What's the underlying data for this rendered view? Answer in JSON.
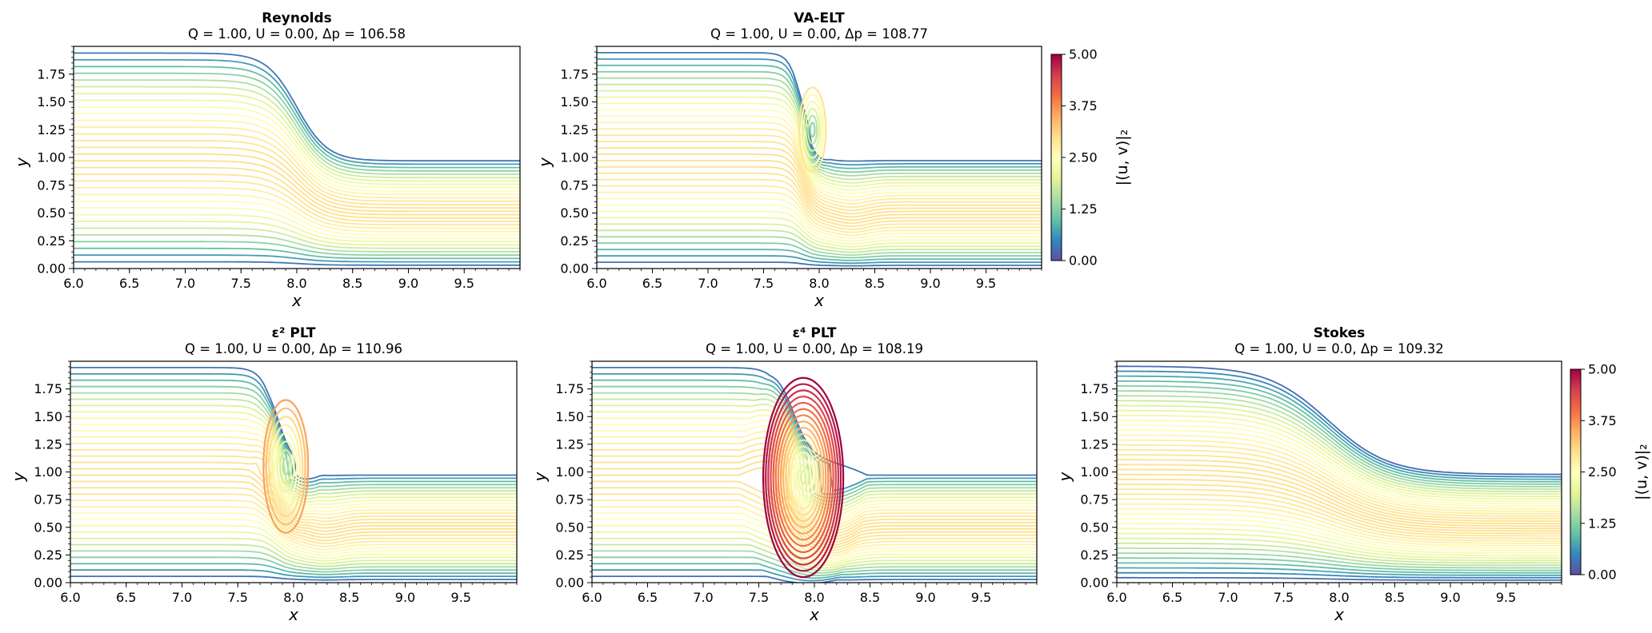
{
  "figure_description": "Streamline comparison of lubrication-theory models vs Stokes flow over a backward-facing step",
  "colors": {
    "colormap": [
      "#5e4fa2",
      "#3288bd",
      "#66c2a5",
      "#abdda4",
      "#e6f598",
      "#ffffbf",
      "#fee08b",
      "#fdae61",
      "#f46d43",
      "#d53e4f",
      "#9e0142"
    ]
  },
  "chart_data": [
    {
      "id": "reynolds",
      "type": "streamline",
      "title": "Reynolds",
      "subtitle": "Q = 1.00, U = 0.00, Δp = 106.58",
      "xlabel": "x",
      "ylabel": "y",
      "xlim": [
        6.0,
        10.0
      ],
      "ylim": [
        0.0,
        2.0
      ],
      "xticks": [
        "6.0",
        "6.5",
        "7.0",
        "7.5",
        "8.0",
        "8.5",
        "9.0",
        "9.5"
      ],
      "yticks": [
        "0.00",
        "0.25",
        "0.50",
        "0.75",
        "1.00",
        "1.25",
        "1.50",
        "1.75"
      ],
      "geometry": {
        "h_in": 2.0,
        "h_out": 1.0,
        "step_center_x": 8.0,
        "step_width": 0.6
      },
      "streamline_count": 32,
      "vortex": null,
      "colorbar": null
    },
    {
      "id": "va-elt",
      "type": "streamline",
      "title": "VA-ELT",
      "subtitle": "Q = 1.00, U = 0.00, Δp = 108.77",
      "xlabel": "x",
      "ylabel": "y",
      "xlim": [
        6.0,
        10.0
      ],
      "ylim": [
        0.0,
        2.0
      ],
      "xticks": [
        "6.0",
        "6.5",
        "7.0",
        "7.5",
        "8.0",
        "8.5",
        "9.0",
        "9.5"
      ],
      "yticks": [
        "0.00",
        "0.25",
        "0.50",
        "0.75",
        "1.00",
        "1.25",
        "1.50",
        "1.75"
      ],
      "geometry": {
        "h_in": 2.0,
        "h_out": 1.0,
        "step_center_x": 7.85,
        "step_width": 0.25
      },
      "streamline_count": 34,
      "vortex": {
        "cx": 7.94,
        "cy": 1.25,
        "rx": 0.12,
        "ry": 0.38,
        "rings": 6,
        "max_speed": 2.9
      },
      "colorbar": {
        "label": "|(u, v)|₂",
        "min": 0.0,
        "max": 5.0,
        "ticks": [
          "0.00",
          "1.25",
          "2.50",
          "3.75",
          "5.00"
        ]
      }
    },
    {
      "id": "eps2-plt",
      "type": "streamline",
      "title": "ε² PLT",
      "subtitle": "Q = 1.00, U = 0.00, Δp = 110.96",
      "xlabel": "x",
      "ylabel": "y",
      "xlim": [
        6.0,
        10.0
      ],
      "ylim": [
        0.0,
        2.0
      ],
      "xticks": [
        "6.0",
        "6.5",
        "7.0",
        "7.5",
        "8.0",
        "8.5",
        "9.0",
        "9.5"
      ],
      "yticks": [
        "0.00",
        "0.25",
        "0.50",
        "0.75",
        "1.00",
        "1.25",
        "1.50",
        "1.75"
      ],
      "geometry": {
        "h_in": 2.0,
        "h_out": 1.0,
        "step_center_x": 7.85,
        "step_width": 0.3
      },
      "streamline_count": 34,
      "vortex": {
        "cx": 7.93,
        "cy": 1.05,
        "rx": 0.2,
        "ry": 0.6,
        "rings": 8,
        "max_speed": 3.6
      },
      "colorbar": null
    },
    {
      "id": "eps4-plt",
      "type": "streamline",
      "title": "ε⁴ PLT",
      "subtitle": "Q = 1.00, U = 0.00, Δp = 108.19",
      "xlabel": "x",
      "ylabel": "y",
      "xlim": [
        6.0,
        10.0
      ],
      "ylim": [
        0.0,
        2.0
      ],
      "xticks": [
        "6.0",
        "6.5",
        "7.0",
        "7.5",
        "8.0",
        "8.5",
        "9.0",
        "9.5"
      ],
      "yticks": [
        "0.00",
        "0.25",
        "0.50",
        "0.75",
        "1.00",
        "1.25",
        "1.50",
        "1.75"
      ],
      "geometry": {
        "h_in": 2.0,
        "h_out": 1.0,
        "step_center_x": 7.8,
        "step_width": 0.35
      },
      "streamline_count": 34,
      "vortex": {
        "cx": 7.9,
        "cy": 0.95,
        "rx": 0.36,
        "ry": 0.9,
        "rings": 16,
        "max_speed": 5.0
      },
      "colorbar": null
    },
    {
      "id": "stokes",
      "type": "streamline",
      "title": "Stokes",
      "subtitle": "Q = 1.00, U = 0.0, Δp = 109.32",
      "xlabel": "x",
      "ylabel": "y",
      "xlim": [
        6.0,
        10.0
      ],
      "ylim": [
        0.0,
        2.0
      ],
      "xticks": [
        "6.0",
        "6.5",
        "7.0",
        "7.5",
        "8.0",
        "8.5",
        "9.0",
        "9.5"
      ],
      "yticks": [
        "0.00",
        "0.25",
        "0.50",
        "0.75",
        "1.00",
        "1.25",
        "1.50",
        "1.75"
      ],
      "geometry": {
        "h_in": 2.0,
        "h_out": 1.0,
        "step_center_x": 7.9,
        "step_width": 1.2
      },
      "streamline_count": 44,
      "vortex": null,
      "colorbar": {
        "label": "|(u, v)|₂",
        "min": 0.0,
        "max": 5.0,
        "ticks": [
          "0.00",
          "1.25",
          "2.50",
          "3.75",
          "5.00"
        ]
      }
    }
  ]
}
